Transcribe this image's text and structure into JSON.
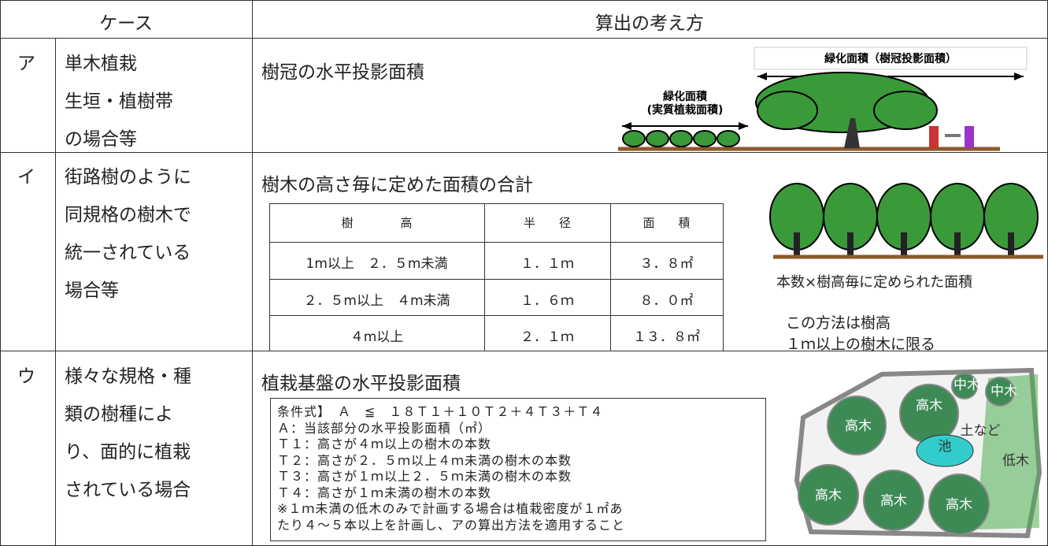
{
  "header": {
    "case": "ケース",
    "method": "算出の考え方"
  },
  "rows": [
    {
      "label": "ア",
      "case": [
        "単木植栽",
        "生垣・植樹帯",
        "の場合等"
      ],
      "method": "樹冠の水平投影面積",
      "figure": {
        "crown_area": "緑化面積（樹冠投影面積）",
        "planting_area": [
          "緑化面積",
          "(実質植栽面積)"
        ]
      }
    },
    {
      "label": "イ",
      "case": [
        "街路樹のように",
        "同規格の樹木で",
        "統一されている",
        "場合等"
      ],
      "method": "樹木の高さ毎に定めた面積の合計",
      "table": {
        "header": [
          "樹　　　　高",
          "半　　径",
          "面　　積"
        ],
        "rows": [
          [
            "1m以上　２．５m未満",
            "１．１ｍ",
            "３．８㎡"
          ],
          [
            "２．５m以上　４m未満",
            "１．６ｍ",
            "８．０㎡"
          ],
          [
            "４m以上",
            "２．１ｍ",
            "１３．８㎡"
          ]
        ]
      },
      "figure": {
        "caption": "本数×樹高毎に定められた面積"
      },
      "note": [
        "この方法は樹高",
        "１ｍ以上の樹木に限る"
      ]
    },
    {
      "label": "ウ",
      "case": [
        "様々な規格・種",
        "類の樹種によ",
        "り、面的に植栽",
        "されている場合"
      ],
      "method": "植栽基盤の水平投影面積",
      "formula": [
        "条件式】　Ａ　≦　１８Ｔ１＋１０Ｔ２＋４Ｔ３＋Ｔ４",
        "Ａ：当該部分の水平投影面積（㎡）",
        "Ｔ１：高さが４ｍ以上の樹木の本数",
        "Ｔ２：高さが２．５ｍ以上４ｍ未満の樹木の本数",
        "Ｔ３：高さが１ｍ以上２．５ｍ未満の樹木の本数",
        "Ｔ４：高さが１ｍ未満の樹木の本数",
        "※１ｍ未満の低木のみで計画する場合は植栽密度が１㎡あ",
        "たり４～５本以上を計画し、アの算出方法を適用すること"
      ],
      "figure": {
        "labels": [
          "中木",
          "中木",
          "高木",
          "高木",
          "土など",
          "池",
          "低木",
          "高木",
          "高木",
          "高木"
        ]
      }
    }
  ]
}
